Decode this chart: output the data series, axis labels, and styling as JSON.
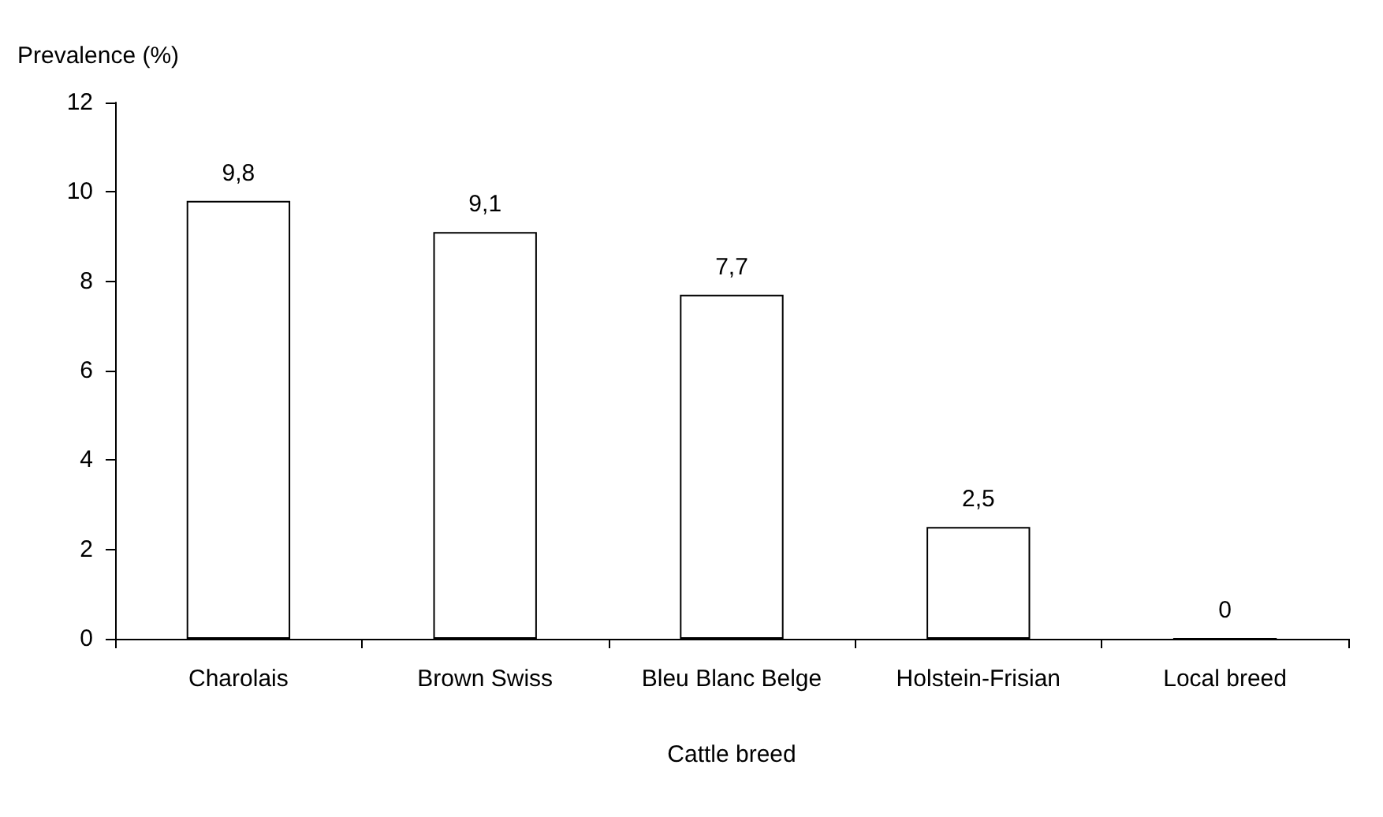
{
  "chart_data": {
    "type": "bar",
    "xlabel": "Cattle breed",
    "ylabel": "Prevalence (%)",
    "categories": [
      "Charolais",
      "Brown Swiss",
      "Bleu Blanc Belge",
      "Holstein-Frisian",
      "Local breed"
    ],
    "values": [
      9.8,
      9.1,
      7.7,
      2.5,
      0
    ],
    "value_labels": [
      "9,8",
      "9,1",
      "7,7",
      "2,5",
      "0"
    ],
    "color": "#ffffff",
    "ylim": [
      0,
      12
    ],
    "yticks": [
      0,
      2,
      4,
      6,
      8,
      10,
      12
    ],
    "grid": false
  }
}
